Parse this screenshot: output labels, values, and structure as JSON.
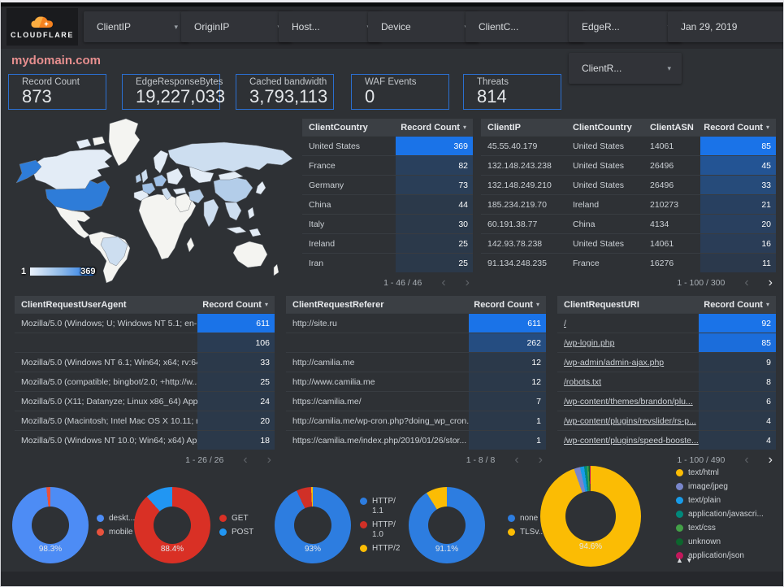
{
  "brand": {
    "logo_text": "CLOUDFLARE"
  },
  "page_title": "mydomain.com",
  "filters": [
    {
      "label": "ClientIP"
    },
    {
      "label": "OriginIP"
    },
    {
      "label": "Host..."
    },
    {
      "label": "Device"
    },
    {
      "label": "ClientC..."
    },
    {
      "label": "EdgeR..."
    },
    {
      "label": "Jan 29, 2019"
    }
  ],
  "filters_row2": [
    {
      "label": "ClientR..."
    }
  ],
  "scorecards": [
    {
      "label": "Record Count",
      "value": "873"
    },
    {
      "label": "EdgeResponseBytes",
      "value": "19,227,033"
    },
    {
      "label": "Cached bandwidth",
      "value": "3,793,113"
    },
    {
      "label": "WAF Events",
      "value": "0"
    },
    {
      "label": "Threats",
      "value": "814"
    }
  ],
  "map": {
    "legend_min": "1",
    "legend_max": "369"
  },
  "tables": {
    "client_country": {
      "columns": [
        "ClientCountry",
        "Record Count"
      ],
      "rows": [
        [
          "United States",
          369
        ],
        [
          "France",
          82
        ],
        [
          "Germany",
          73
        ],
        [
          "China",
          44
        ],
        [
          "Italy",
          30
        ],
        [
          "Ireland",
          25
        ],
        [
          "Iran",
          25
        ]
      ],
      "max": 369,
      "pagination": "1 - 46 / 46",
      "next_enabled": false
    },
    "client_ip": {
      "columns": [
        "ClientIP",
        "ClientCountry",
        "ClientASN",
        "Record Count"
      ],
      "rows": [
        [
          "45.55.40.179",
          "United States",
          "14061",
          85
        ],
        [
          "132.148.243.238",
          "United States",
          "26496",
          45
        ],
        [
          "132.148.249.210",
          "United States",
          "26496",
          33
        ],
        [
          "185.234.219.70",
          "Ireland",
          "210273",
          21
        ],
        [
          "60.191.38.77",
          "China",
          "4134",
          20
        ],
        [
          "142.93.78.238",
          "United States",
          "14061",
          16
        ],
        [
          "91.134.248.235",
          "France",
          "16276",
          11
        ]
      ],
      "max": 85,
      "pagination": "1 - 100 / 300",
      "next_enabled": true
    },
    "user_agent": {
      "columns": [
        "ClientRequestUserAgent",
        "Record Count"
      ],
      "rows": [
        [
          "Mozilla/5.0 (Windows; U; Windows NT 5.1; en-U...",
          611
        ],
        [
          "",
          106
        ],
        [
          "Mozilla/5.0 (Windows NT 6.1; Win64; x64; rv:64...",
          33
        ],
        [
          "Mozilla/5.0 (compatible; bingbot/2.0; +http://w...",
          25
        ],
        [
          "Mozilla/5.0 (X11; Datanyze; Linux x86_64) Appl...",
          24
        ],
        [
          "Mozilla/5.0 (Macintosh; Intel Mac OS X 10.11; r...",
          20
        ],
        [
          "Mozilla/5.0 (Windows NT 10.0; Win64; x64) App...",
          18
        ]
      ],
      "max": 611,
      "pagination": "1 - 26 / 26",
      "next_enabled": false
    },
    "referer": {
      "columns": [
        "ClientRequestReferer",
        "Record Count"
      ],
      "rows": [
        [
          "http://site.ru",
          611
        ],
        [
          "",
          262
        ],
        [
          "http://camilia.me",
          12
        ],
        [
          "http://www.camilia.me",
          12
        ],
        [
          "https://camilia.me/",
          7
        ],
        [
          "http://camilia.me/wp-cron.php?doing_wp_cron...",
          1
        ],
        [
          "https://camilia.me/index.php/2019/01/26/stor...",
          1
        ]
      ],
      "max": 611,
      "pagination": "1 - 8 / 8",
      "next_enabled": false
    },
    "uri": {
      "columns": [
        "ClientRequestURI",
        "Record Count"
      ],
      "rows": [
        [
          "/",
          92
        ],
        [
          "/wp-login.php",
          85
        ],
        [
          "/wp-admin/admin-ajax.php",
          9
        ],
        [
          "/robots.txt",
          8
        ],
        [
          "/wp-content/themes/brandon/plu...",
          6
        ],
        [
          "/wp-content/plugins/revslider/rs-p...",
          4
        ],
        [
          "/wp-content/plugins/speed-booste...",
          4
        ]
      ],
      "max": 92,
      "pagination": "1 - 100 / 490",
      "next_enabled": true
    }
  },
  "heat_color": "#1a73e8",
  "donuts": [
    {
      "type": "pie",
      "label": "98.3%",
      "slices": [
        {
          "name": "deskt...",
          "value": 98.3,
          "color": "#4d8cf5"
        },
        {
          "name": "mobile",
          "value": 1.7,
          "color": "#e8523d"
        }
      ]
    },
    {
      "type": "pie",
      "label": "88.4%",
      "slices": [
        {
          "name": "GET",
          "value": 88.4,
          "color": "#d93025"
        },
        {
          "name": "POST",
          "value": 11.6,
          "color": "#2196f3"
        }
      ]
    },
    {
      "type": "pie",
      "label": "93%",
      "slices": [
        {
          "name": "HTTP/\n1.1",
          "value": 93,
          "color": "#2d7de0"
        },
        {
          "name": "HTTP/\n1.0",
          "value": 6.3,
          "color": "#d03027"
        },
        {
          "name": "HTTP/2",
          "value": 0.7,
          "color": "#fbbc04"
        }
      ]
    },
    {
      "type": "pie",
      "label": "91.1%",
      "slices": [
        {
          "name": "none",
          "value": 91.1,
          "color": "#2d7de0"
        },
        {
          "name": "TLSv..",
          "value": 8.9,
          "color": "#fbbc04"
        }
      ]
    },
    {
      "type": "pie",
      "label": "94.6%",
      "slices": [
        {
          "name": "text/html",
          "value": 94.6,
          "color": "#fbbc04"
        },
        {
          "name": "image/jpeg",
          "value": 2.0,
          "color": "#7986cb"
        },
        {
          "name": "text/plain",
          "value": 1.3,
          "color": "#189be8"
        },
        {
          "name": "application/javascri...",
          "value": 0.9,
          "color": "#00897b"
        },
        {
          "name": "text/css",
          "value": 0.55,
          "color": "#43a047"
        },
        {
          "name": "unknown",
          "value": 0.35,
          "color": "#0d652d"
        },
        {
          "name": "application/json",
          "value": 0.3,
          "color": "#c2185b"
        }
      ]
    }
  ]
}
